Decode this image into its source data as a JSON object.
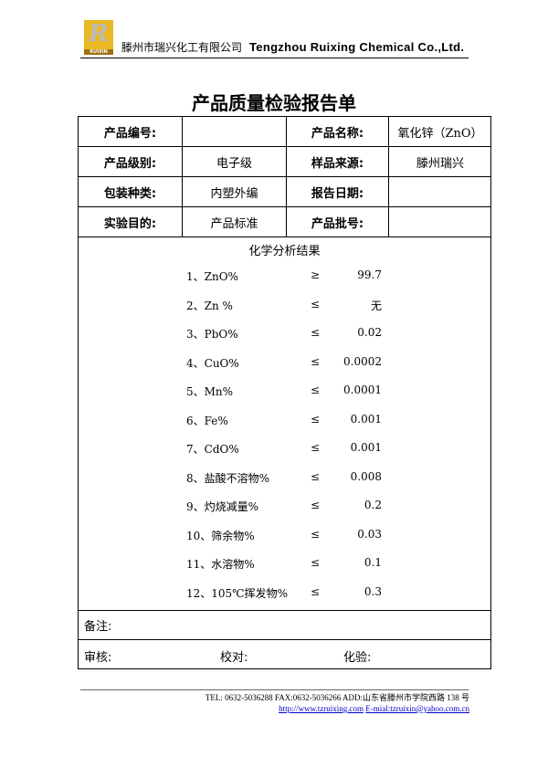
{
  "header": {
    "logo_text": "RUIXIN",
    "company_cn": "滕州市瑞兴化工有限公司",
    "company_en": "Tengzhou Ruixing Chemical Co.,Ltd."
  },
  "title": "产品质量检验报告单",
  "info": [
    [
      "产品编号:",
      "",
      "产品名称:",
      "氧化锌（ZnO）"
    ],
    [
      "产品级别:",
      "电子级",
      "样品来源:",
      "滕州瑞兴"
    ],
    [
      "包装种类:",
      "内塑外编",
      "报告日期:",
      ""
    ],
    [
      "实验目的:",
      "产品标准",
      "产品批号:",
      ""
    ]
  ],
  "results_title": "化学分析结果",
  "results": [
    {
      "item": "1、ZnO%",
      "op": "≥",
      "value": "99.7"
    },
    {
      "item": "2、Zn %",
      "op": "≤",
      "value": "无"
    },
    {
      "item": "3、PbO%",
      "op": "≤",
      "value": "0.02"
    },
    {
      "item": "4、CuO%",
      "op": "≤",
      "value": "0.0002"
    },
    {
      "item": "5、Mn%",
      "op": "≤",
      "value": "0.0001"
    },
    {
      "item": "6、Fe%",
      "op": "≤",
      "value": "0.001"
    },
    {
      "item": "7、CdO%",
      "op": "≤",
      "value": "0.001"
    },
    {
      "item": "8、盐酸不溶物%",
      "op": "≤",
      "value": "0.008"
    },
    {
      "item": "9、灼烧减量%",
      "op": "≤",
      "value": "0.2"
    },
    {
      "item": "10、筛余物%",
      "op": "≤",
      "value": "0.03"
    },
    {
      "item": "11、水溶物%",
      "op": "≤",
      "value": "0.1"
    },
    {
      "item": "12、105℃挥发物%",
      "op": "≤",
      "value": "0.3"
    }
  ],
  "notes_label": "备注:",
  "sign": {
    "review": "审核:",
    "check": "校对:",
    "test": "化验:"
  },
  "footer": {
    "contact": "TEL: 0632-5036288    FAX:0632-5036266 ADD:山东省滕州市学院西路 138 号",
    "website": "http://www.tzruixing.com",
    "email": "E-mial:tzruixin@yahoo.com.cn"
  }
}
